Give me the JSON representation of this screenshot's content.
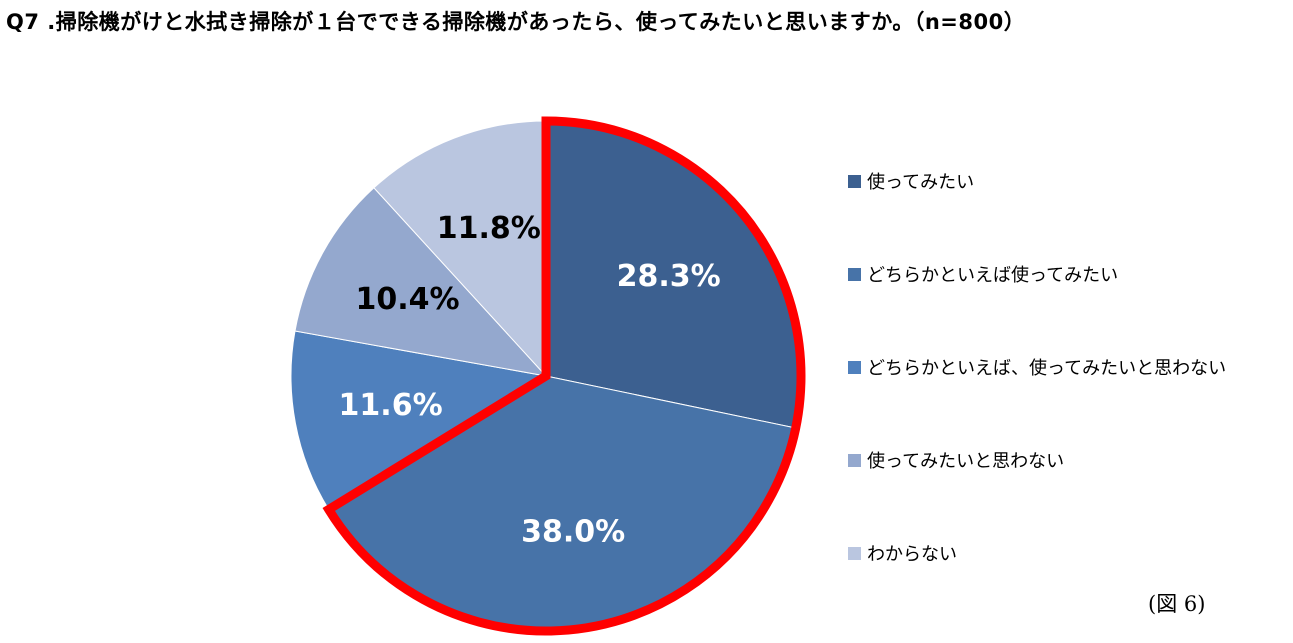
{
  "title": "Q7 .掃除機がけと水拭き掃除が１台でできる掃除機があったら、使ってみたいと思いますか。（n=800）",
  "figure_note": "(図 6)",
  "highlight_color": "#ff0000",
  "chart_data": {
    "type": "pie",
    "title": "Q7 .掃除機がけと水拭き掃除が１台でできる掃除機があったら、使ってみたいと思いますか。（n=800）",
    "n": 800,
    "start_angle_deg": 0,
    "direction": "clockwise",
    "highlighted_slices": [
      0,
      1
    ],
    "slices": [
      {
        "label": "使ってみたい",
        "value": 28.3,
        "display": "28.3%",
        "color": "#3c6090",
        "text_color": "#ffffff"
      },
      {
        "label": "どちらかといえば使ってみたい",
        "value": 38.0,
        "display": "38.0%",
        "color": "#4773a8",
        "text_color": "#ffffff"
      },
      {
        "label": "どちらかといえば、使ってみたいと思わない",
        "value": 11.6,
        "display": "11.6%",
        "color": "#4f80bd",
        "text_color": "#ffffff"
      },
      {
        "label": "使ってみたいと思わない",
        "value": 10.4,
        "display": "10.4%",
        "color": "#94a8ce",
        "text_color": "#000000"
      },
      {
        "label": "わからない",
        "value": 11.8,
        "display": "11.8%",
        "color": "#bac6e0",
        "text_color": "#000000"
      }
    ],
    "legend_position": "right"
  }
}
